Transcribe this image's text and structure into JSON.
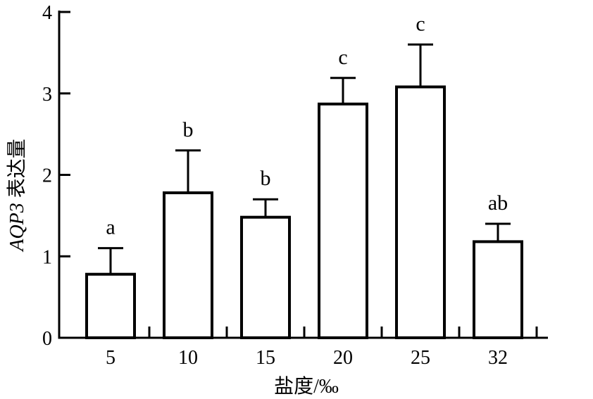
{
  "chart_data": {
    "type": "bar",
    "categories": [
      "5",
      "10",
      "15",
      "20",
      "25",
      "32"
    ],
    "values": [
      0.78,
      1.78,
      1.48,
      2.87,
      3.08,
      1.18
    ],
    "error_upper": [
      1.1,
      2.3,
      1.7,
      3.19,
      3.6,
      1.4
    ],
    "significance_labels": [
      "a",
      "b",
      "b",
      "c",
      "c",
      "ab"
    ],
    "title": "",
    "xlabel": "盐度/‰",
    "ylabel_italic": "AQP3",
    "ylabel_rest": " 表达量",
    "ylim": [
      0,
      4
    ],
    "yticks": [
      "0",
      "1",
      "2",
      "3",
      "4"
    ],
    "grid": false,
    "legend": "none",
    "bar_fill": "#ffffff",
    "bar_stroke": "#000000"
  }
}
